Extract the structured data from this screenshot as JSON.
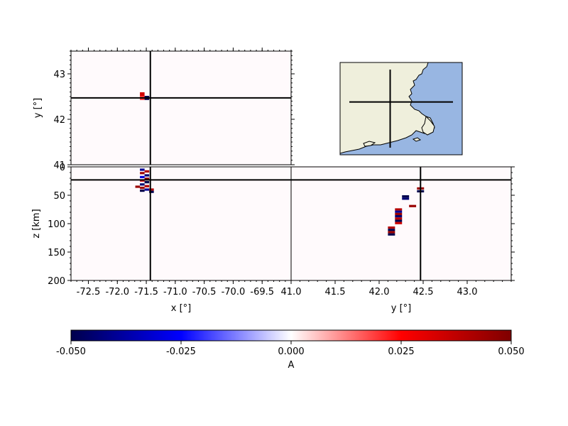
{
  "chart_data": {
    "type": "heatmap",
    "colormap": "seismic",
    "background_color": "#fffafc",
    "crosshair": {
      "x": -71.43,
      "y": 42.47,
      "z": 23
    },
    "panels": {
      "map_view": {
        "xlim": [
          -72.8,
          -69.0
        ],
        "ylim": [
          41.0,
          43.5
        ],
        "ylabel": "y [$^\\circ$]",
        "yticks": [
          41,
          42,
          43
        ],
        "ytick_labels": [
          "41",
          "42",
          "43"
        ]
      },
      "xz_section": {
        "xlim": [
          -72.8,
          -69.0
        ],
        "zlim": [
          200,
          0
        ],
        "xlabel": "x [$^\\circ$]",
        "ylabel": "z [km]",
        "xticks": [
          -72.5,
          -72.0,
          -71.5,
          -71.0,
          -70.5,
          -70.0,
          -69.5
        ],
        "xtick_labels": [
          "-72.5",
          "-72.0",
          "-71.5",
          "-71.0",
          "-70.5",
          "-70.0",
          "-69.5"
        ],
        "zticks": [
          0,
          50,
          100,
          150,
          200
        ],
        "ztick_labels": [
          "0",
          "50",
          "100",
          "150",
          "200"
        ]
      },
      "yz_section": {
        "ylim": [
          41.0,
          43.5
        ],
        "zlim": [
          200,
          0
        ],
        "xlabel": "y [$^\\circ$]",
        "yticks": [
          41.0,
          41.5,
          42.0,
          42.5,
          43.0
        ],
        "ytick_labels": [
          "41.0",
          "41.5",
          "42.0",
          "42.5",
          "43.0"
        ]
      },
      "inset_map": {
        "land_color": "#efefdc",
        "water_color": "#98b6e2",
        "crosshair_x_frac": 0.41,
        "crosshair_y_frac": 0.32
      }
    },
    "colorbar": {
      "label": "A",
      "vmin": -0.05,
      "vmax": 0.05,
      "ticks": [
        -0.05,
        -0.025,
        0.0,
        0.025,
        0.05
      ],
      "tick_labels": [
        "-0.050",
        "-0.025",
        "0.000",
        "0.025",
        "0.050"
      ]
    },
    "map_cells": [
      {
        "x": -71.57,
        "y": 42.55,
        "v": 0.034
      },
      {
        "x": -71.57,
        "y": 42.47,
        "v": 0.02
      },
      {
        "x": -71.49,
        "y": 42.47,
        "v": -0.05
      }
    ],
    "xz_cells": [
      {
        "x": -71.57,
        "z": 5,
        "v": -0.04
      },
      {
        "x": -71.49,
        "z": 8,
        "v": 0.04
      },
      {
        "x": -71.57,
        "z": 11,
        "v": 0.045
      },
      {
        "x": -71.49,
        "z": 15,
        "v": -0.045
      },
      {
        "x": -71.57,
        "z": 18,
        "v": -0.03
      },
      {
        "x": -71.49,
        "z": 21,
        "v": 0.05
      },
      {
        "x": -71.57,
        "z": 24,
        "v": 0.035
      },
      {
        "x": -71.49,
        "z": 27,
        "v": -0.05
      },
      {
        "x": -71.57,
        "z": 31,
        "v": -0.045
      },
      {
        "x": -71.49,
        "z": 34,
        "v": 0.04
      },
      {
        "x": -71.65,
        "z": 35,
        "v": 0.045
      },
      {
        "x": -71.57,
        "z": 37,
        "v": 0.045
      },
      {
        "x": -71.49,
        "z": 40,
        "v": -0.04
      },
      {
        "x": -71.57,
        "z": 42,
        "v": -0.05
      },
      {
        "x": -71.41,
        "z": 40,
        "v": 0.04
      },
      {
        "x": -71.41,
        "z": 44,
        "v": -0.05
      }
    ],
    "yz_cells": [
      {
        "y": 42.47,
        "z": 38,
        "v": 0.045
      },
      {
        "y": 42.47,
        "z": 43,
        "v": -0.05
      },
      {
        "y": 42.3,
        "z": 52,
        "v": -0.05
      },
      {
        "y": 42.3,
        "z": 56,
        "v": -0.045
      },
      {
        "y": 42.38,
        "z": 69,
        "v": 0.045
      },
      {
        "y": 42.22,
        "z": 75,
        "v": 0.04
      },
      {
        "y": 42.22,
        "z": 79,
        "v": -0.04
      },
      {
        "y": 42.22,
        "z": 83,
        "v": 0.045
      },
      {
        "y": 42.22,
        "z": 87,
        "v": -0.045
      },
      {
        "y": 42.22,
        "z": 91,
        "v": 0.04
      },
      {
        "y": 42.22,
        "z": 95,
        "v": -0.05
      },
      {
        "y": 42.22,
        "z": 99,
        "v": 0.035
      },
      {
        "y": 42.14,
        "z": 107,
        "v": 0.04
      },
      {
        "y": 42.14,
        "z": 111,
        "v": -0.05
      },
      {
        "y": 42.14,
        "z": 115,
        "v": 0.045
      },
      {
        "y": 42.14,
        "z": 119,
        "v": -0.05
      }
    ]
  }
}
